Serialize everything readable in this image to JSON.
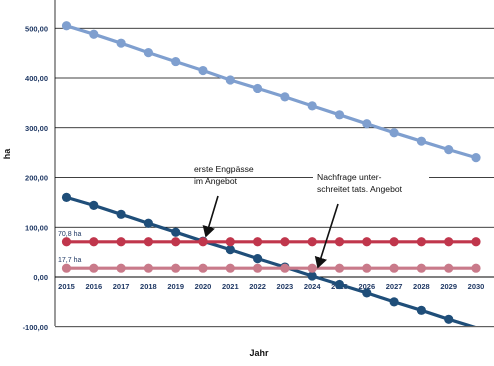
{
  "chart_data": {
    "type": "line",
    "title": "",
    "xlabel": "Jahr",
    "ylabel": "ha",
    "x": [
      "2015",
      "2016",
      "2017",
      "2018",
      "2019",
      "2020",
      "2021",
      "2022",
      "2023",
      "2024",
      "2025",
      "2026",
      "2027",
      "2028",
      "2029",
      "2030"
    ],
    "y_ticks": [
      "-100,00",
      "0,00",
      "100,00",
      "200,00",
      "300,00",
      "400,00",
      "500,00"
    ],
    "ylim": [
      -100,
      540
    ],
    "grid": true,
    "series": [
      {
        "color": "#7f9fcf",
        "values": [
          505,
          488,
          470,
          451,
          433,
          415,
          396,
          379,
          362,
          344,
          326,
          308,
          290,
          273,
          256,
          240
        ]
      },
      {
        "color": "#1f4e79",
        "values": [
          160,
          144,
          126,
          108,
          90,
          72,
          55,
          37,
          20,
          2,
          -15,
          -32,
          -50,
          -67,
          -85,
          -102
        ]
      },
      {
        "color": "#c0364c",
        "values": [
          70.8,
          70.8,
          70.8,
          70.8,
          70.8,
          70.8,
          70.8,
          70.8,
          70.8,
          70.8,
          70.8,
          70.8,
          70.8,
          70.8,
          70.8,
          70.8
        ]
      },
      {
        "color": "#c97a8a",
        "values": [
          17.7,
          17.7,
          17.7,
          17.7,
          17.7,
          17.7,
          17.7,
          17.7,
          17.7,
          17.7,
          17.7,
          17.7,
          17.7,
          17.7,
          17.7,
          17.7
        ]
      }
    ],
    "line_labels": [
      "70,8 ha",
      "17,7 ha"
    ],
    "annotations": [
      {
        "lines": [
          "erste Engpässe",
          "im Angebot"
        ],
        "target_x": "2020",
        "target_y": 70.8
      },
      {
        "lines": [
          "Nachfrage unter-",
          "schreitet tats. Angebot"
        ],
        "target_x": "2024",
        "target_y": 17.7
      }
    ]
  }
}
